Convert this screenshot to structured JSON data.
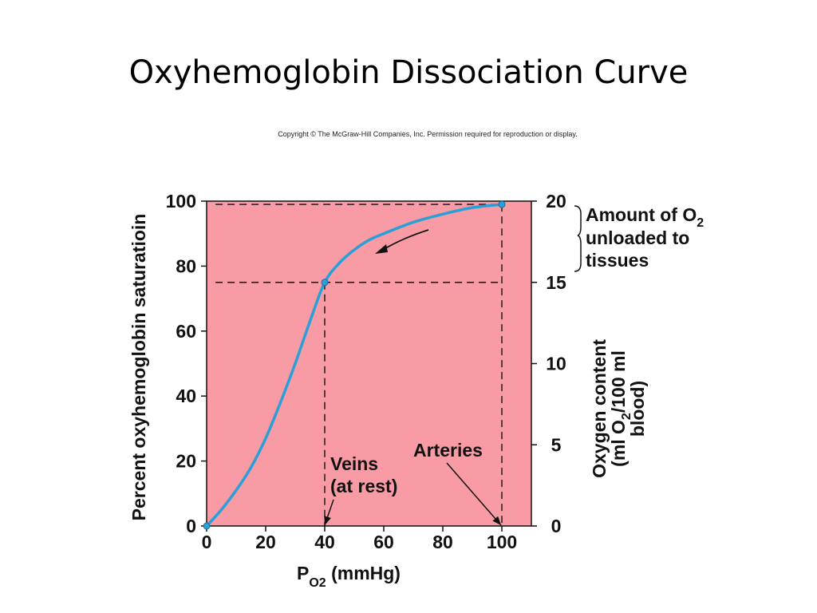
{
  "slide": {
    "title": "Oxyhemoglobin Dissociation Curve",
    "copyright": "Copyright © The McGraw-Hill Companies, Inc. Permission required for reproduction or display."
  },
  "chart_data": {
    "type": "line",
    "x": [
      0,
      5,
      10,
      15,
      20,
      25,
      30,
      35,
      40,
      45,
      50,
      55,
      60,
      70,
      80,
      90,
      100
    ],
    "series": [
      {
        "values": [
          0,
          5,
          11,
          18,
          27,
          38,
          50,
          63,
          75,
          81,
          85,
          88,
          90,
          93.5,
          96,
          98,
          99
        ]
      }
    ],
    "xlim": [
      0,
      110
    ],
    "ylim": [
      0,
      100
    ],
    "y2lim": [
      0,
      20
    ],
    "xticks": [
      "0",
      "20",
      "40",
      "60",
      "80",
      "100"
    ],
    "yticks": [
      "0",
      "20",
      "40",
      "60",
      "80",
      "100"
    ],
    "y2ticks": [
      "0",
      "5",
      "10",
      "15",
      "20"
    ],
    "xlabel_main": "P",
    "xlabel_sub": "O2",
    "xlabel_unit": " (mmHg)",
    "ylabel": "Percent oxyhemoglobin saturatioin",
    "y2label_line1": "Oxygen content",
    "y2label_line2a": "(ml O",
    "y2label_line2sub": "2",
    "y2label_line2b": "/100 ml",
    "y2label_line3": "blood)",
    "plot_background": "#f89ba5",
    "curve_color": "#2b9fd8",
    "grid": false,
    "annotations": {
      "amount_line1a": "Amount of O",
      "amount_line1sub": "2",
      "amount_line2": "unloaded to",
      "amount_line3": "tissues",
      "veins_line1": "Veins",
      "veins_line2": "(at rest)",
      "arteries": "Arteries"
    },
    "reference_points": [
      {
        "label": "veins",
        "x": 40,
        "y": 75
      },
      {
        "label": "arteries",
        "x": 100,
        "y": 99
      }
    ]
  }
}
